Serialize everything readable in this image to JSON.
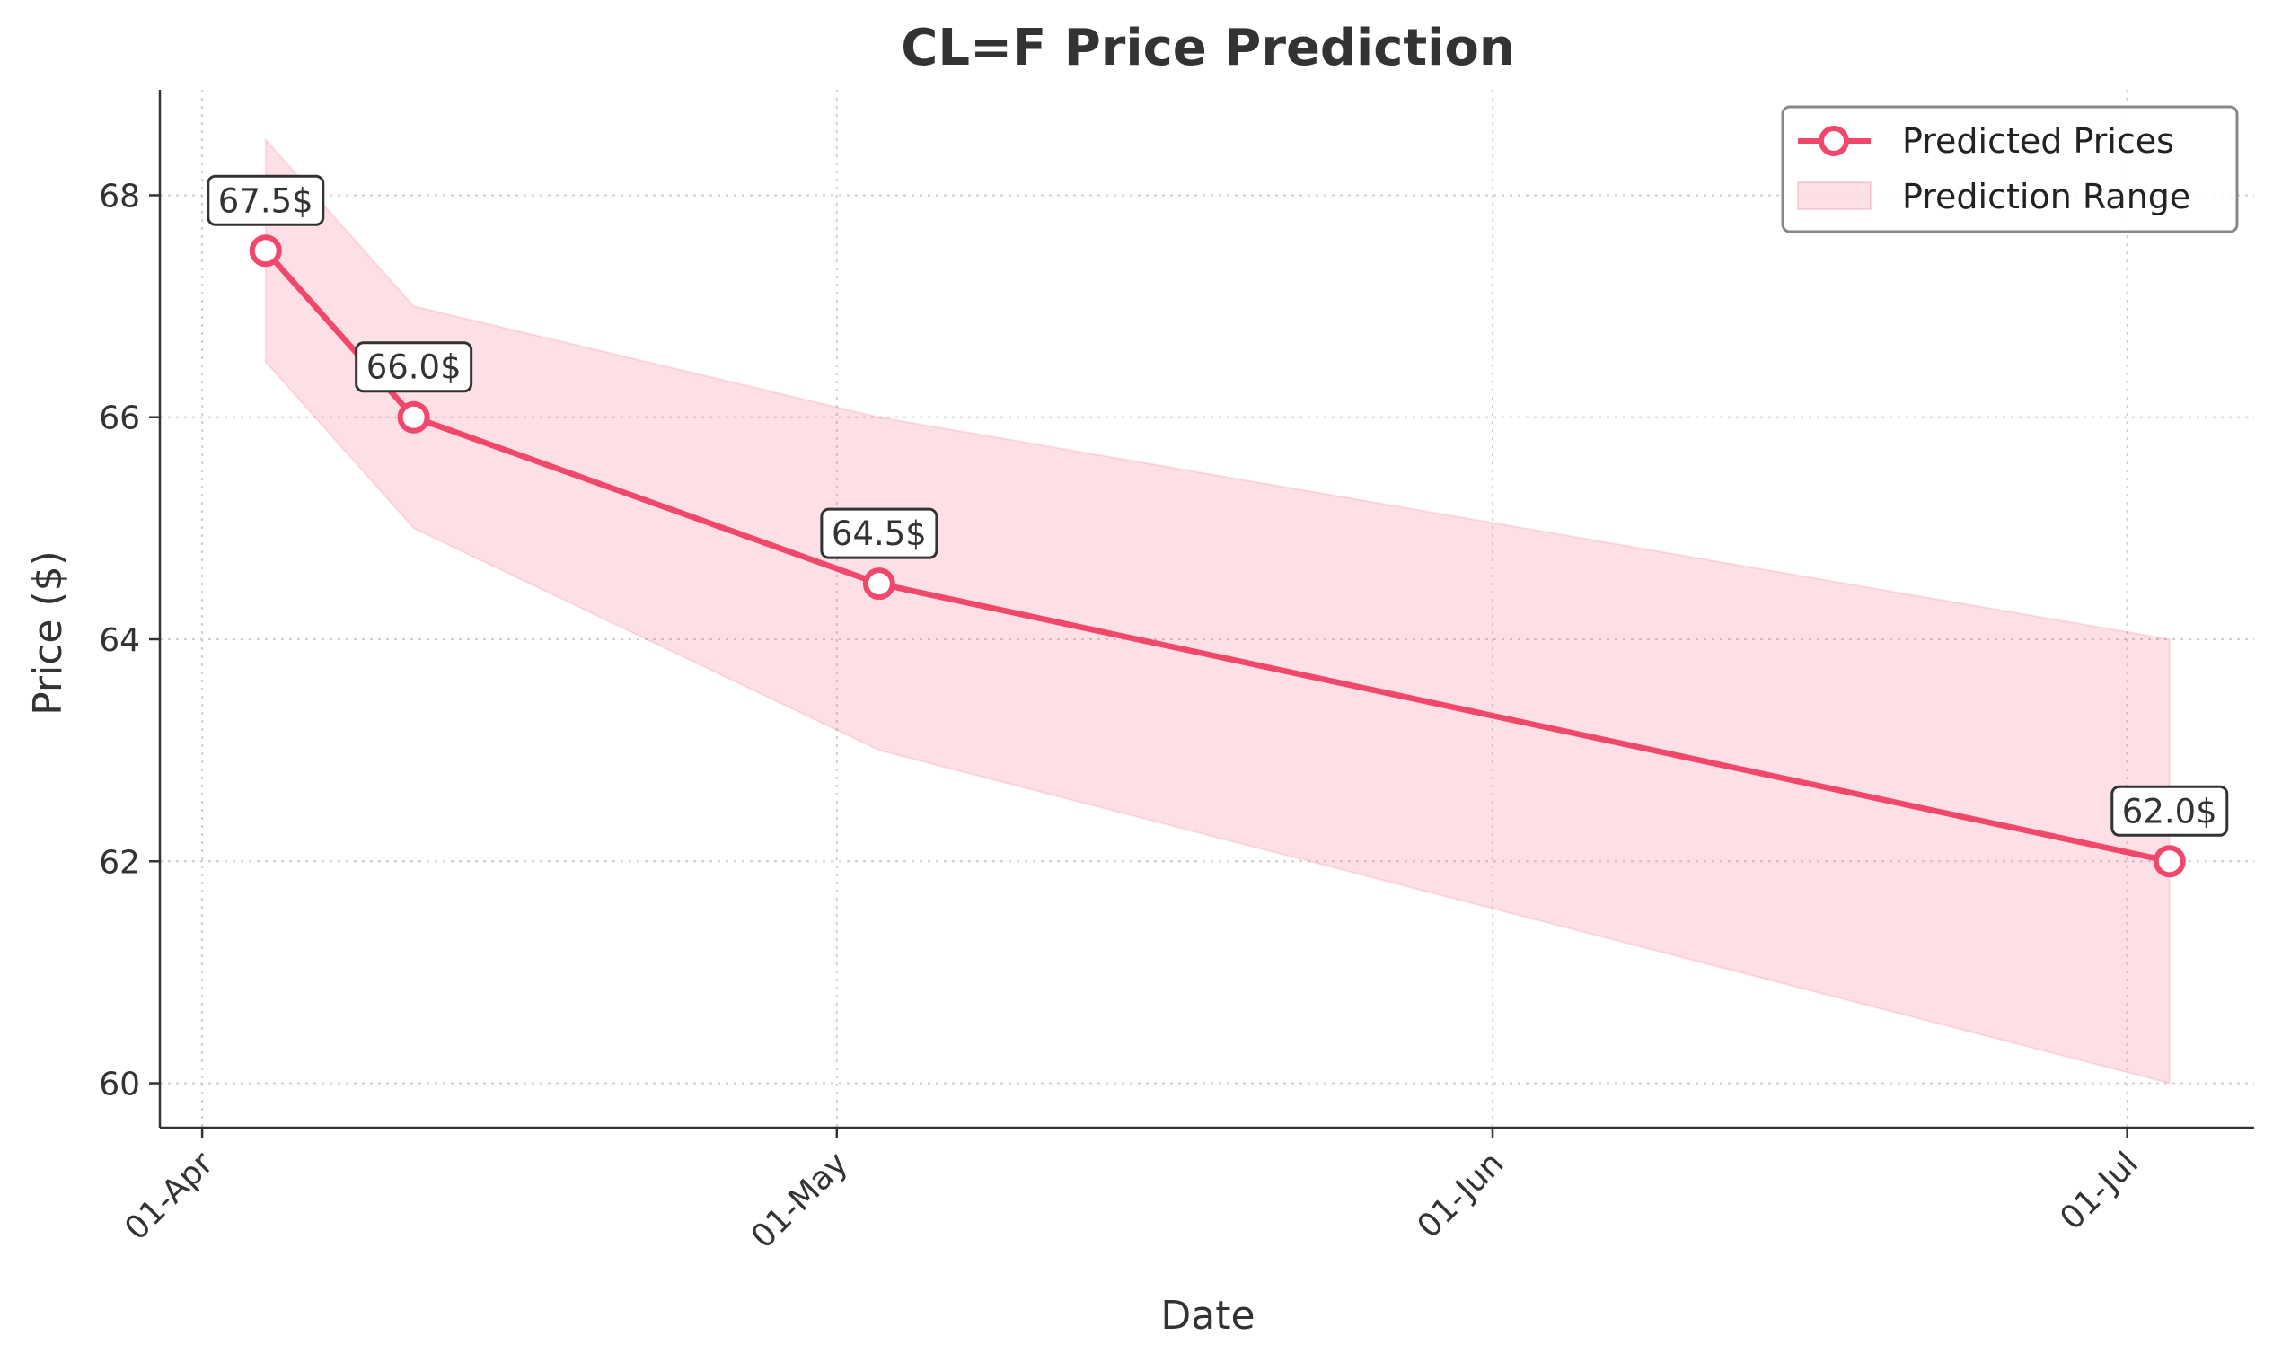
{
  "chart_data": {
    "type": "line",
    "title": "CL=F Price Prediction",
    "xlabel": "Date",
    "ylabel": "Price ($)",
    "x_ticks": [
      {
        "date": "2025-04-01",
        "label": "01-Apr"
      },
      {
        "date": "2025-05-01",
        "label": "01-May"
      },
      {
        "date": "2025-06-01",
        "label": "01-Jun"
      },
      {
        "date": "2025-07-01",
        "label": "01-Jul"
      }
    ],
    "y_ticks": [
      {
        "value": 60,
        "label": "60"
      },
      {
        "value": 62,
        "label": "62"
      },
      {
        "value": 64,
        "label": "64"
      },
      {
        "value": 66,
        "label": "66"
      },
      {
        "value": 68,
        "label": "68"
      }
    ],
    "xlim": [
      "2025-03-30",
      "2025-07-07"
    ],
    "ylim": [
      59.6,
      68.95
    ],
    "grid": true,
    "legend_position": "top-right",
    "series": [
      {
        "name": "Predicted Prices",
        "color": "#f0476a",
        "points": [
          {
            "date": "2025-04-04",
            "value": 67.5,
            "label": "67.5$"
          },
          {
            "date": "2025-04-11",
            "value": 66.0,
            "label": "66.0$"
          },
          {
            "date": "2025-05-03",
            "value": 64.5,
            "label": "64.5$"
          },
          {
            "date": "2025-07-03",
            "value": 62.0,
            "label": "62.0$"
          }
        ]
      }
    ],
    "range": {
      "name": "Prediction Range",
      "color": "#f0476a",
      "points": [
        {
          "date": "2025-04-04",
          "low": 66.5,
          "high": 68.5
        },
        {
          "date": "2025-04-11",
          "low": 65.0,
          "high": 67.0
        },
        {
          "date": "2025-05-03",
          "low": 63.0,
          "high": 66.0
        },
        {
          "date": "2025-07-03",
          "low": 60.0,
          "high": 64.0
        }
      ]
    }
  }
}
